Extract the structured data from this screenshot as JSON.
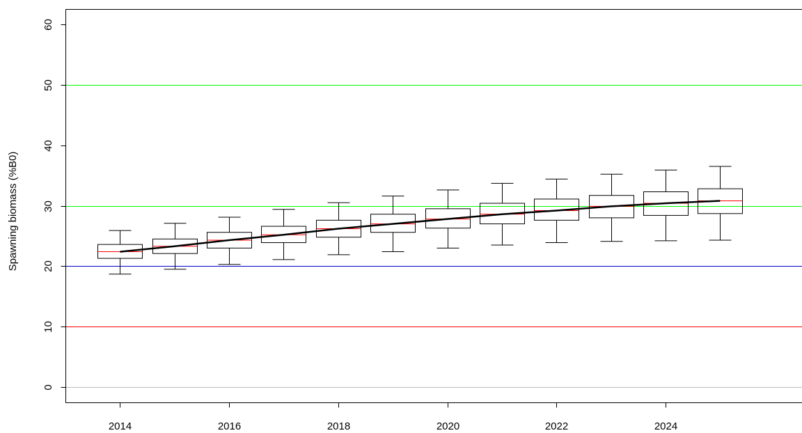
{
  "chart_data": {
    "type": "box",
    "title": "",
    "xlabel": "",
    "ylabel": "Spawning biomass (%B0)",
    "xlim": [
      2013,
      2026.5
    ],
    "ylim": [
      -2.5,
      62.5
    ],
    "x_ticks": [
      2014,
      2016,
      2018,
      2020,
      2022,
      2024
    ],
    "y_ticks": [
      0,
      10,
      20,
      30,
      40,
      50,
      60
    ],
    "reference_lines": [
      {
        "y": 0,
        "color": "#bebebe"
      },
      {
        "y": 10,
        "color": "#ff0000"
      },
      {
        "y": 20,
        "color": "#0000cd"
      },
      {
        "y": 30,
        "color": "#00ff00"
      },
      {
        "y": 50,
        "color": "#00ff00"
      }
    ],
    "boxes": [
      {
        "year": 2014,
        "whisker_low": 18.7,
        "q1": 21.3,
        "median": 22.4,
        "q3": 23.6,
        "whisker_high": 25.9
      },
      {
        "year": 2015,
        "whisker_low": 19.5,
        "q1": 22.1,
        "median": 23.3,
        "q3": 24.5,
        "whisker_high": 27.1
      },
      {
        "year": 2016,
        "whisker_low": 20.3,
        "q1": 23.0,
        "median": 24.3,
        "q3": 25.6,
        "whisker_high": 28.1
      },
      {
        "year": 2017,
        "whisker_low": 21.1,
        "q1": 23.9,
        "median": 25.2,
        "q3": 26.6,
        "whisker_high": 29.4
      },
      {
        "year": 2018,
        "whisker_low": 21.9,
        "q1": 24.8,
        "median": 26.2,
        "q3": 27.6,
        "whisker_high": 30.5
      },
      {
        "year": 2019,
        "whisker_low": 22.4,
        "q1": 25.6,
        "median": 27.0,
        "q3": 28.6,
        "whisker_high": 31.6
      },
      {
        "year": 2020,
        "whisker_low": 23.0,
        "q1": 26.3,
        "median": 27.8,
        "q3": 29.5,
        "whisker_high": 32.6
      },
      {
        "year": 2021,
        "whisker_low": 23.5,
        "q1": 27.0,
        "median": 28.6,
        "q3": 30.4,
        "whisker_high": 33.7
      },
      {
        "year": 2022,
        "whisker_low": 23.9,
        "q1": 27.6,
        "median": 29.2,
        "q3": 31.1,
        "whisker_high": 34.4
      },
      {
        "year": 2023,
        "whisker_low": 24.1,
        "q1": 28.0,
        "median": 29.9,
        "q3": 31.7,
        "whisker_high": 35.2
      },
      {
        "year": 2024,
        "whisker_low": 24.2,
        "q1": 28.4,
        "median": 30.4,
        "q3": 32.3,
        "whisker_high": 35.9
      },
      {
        "year": 2025,
        "whisker_low": 24.3,
        "q1": 28.7,
        "median": 30.8,
        "q3": 32.8,
        "whisker_high": 36.5
      }
    ],
    "median_line": {
      "color": "#000000"
    },
    "colors": {
      "box": "#000000",
      "median_tick": "#ff0000",
      "axis": "#000000"
    },
    "grid": false,
    "legend": "none"
  }
}
